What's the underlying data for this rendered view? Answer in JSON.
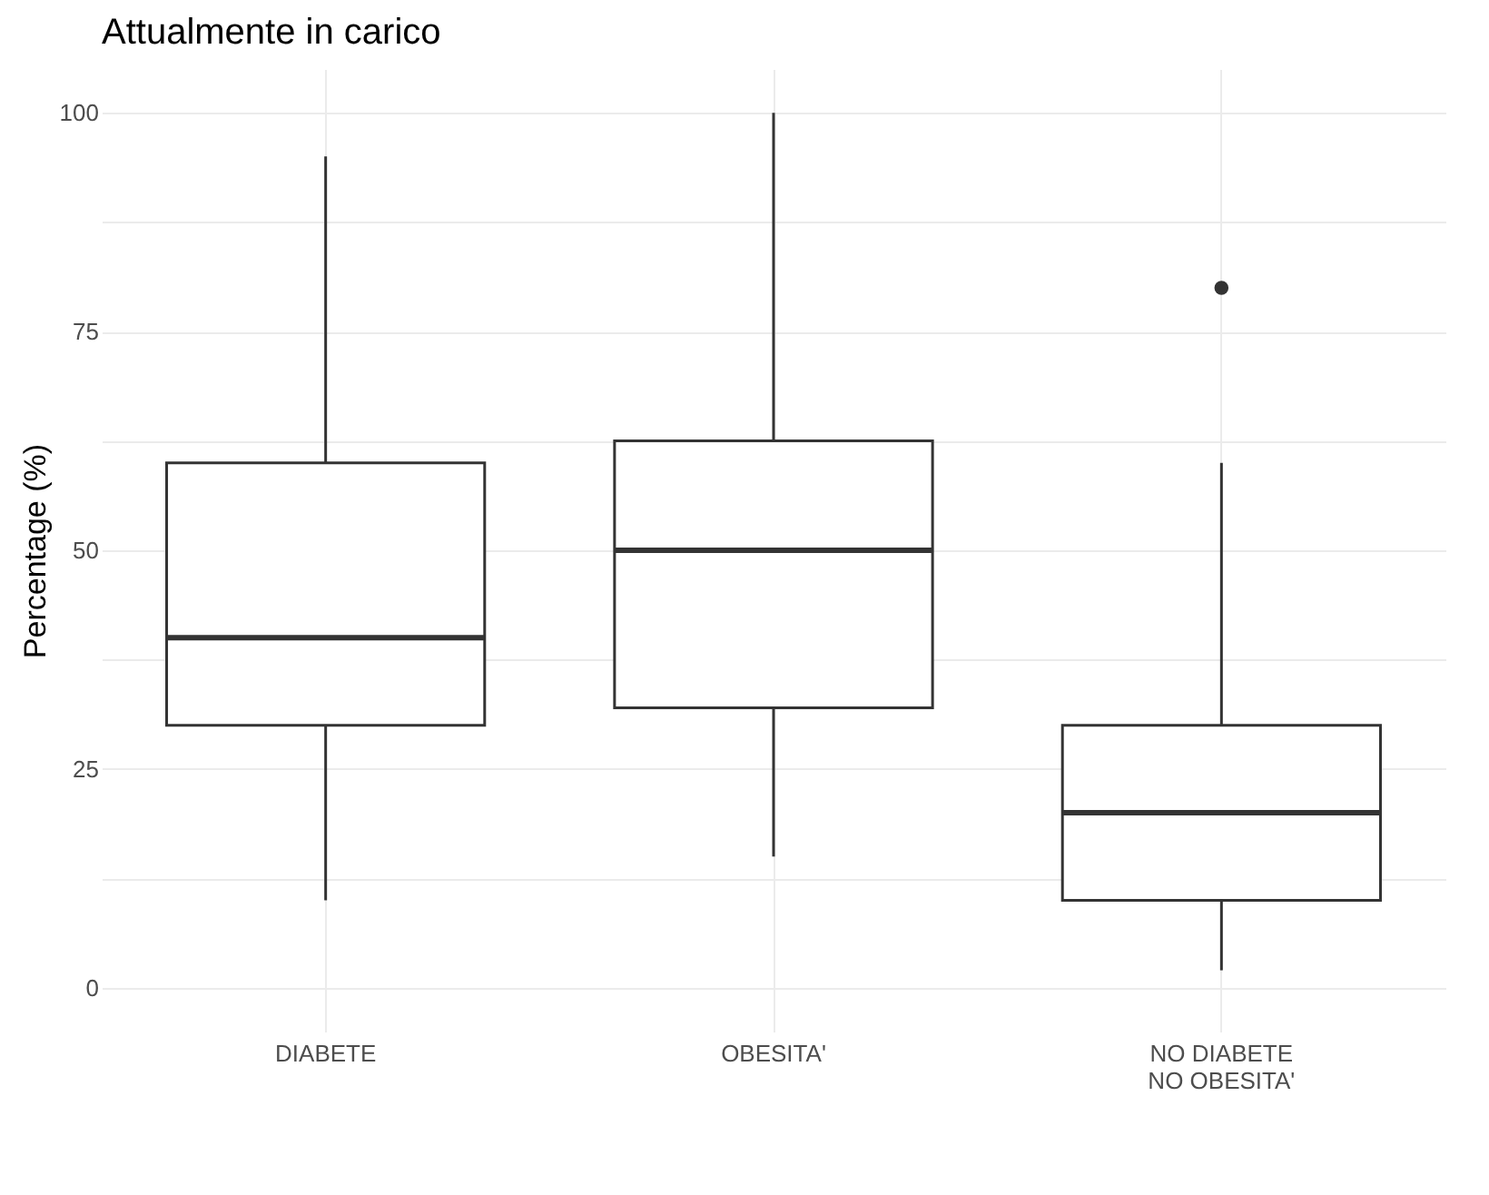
{
  "chart_data": {
    "type": "box",
    "title": "Attualmente in carico",
    "ylabel": "Percentage (%)",
    "categories": [
      "DIABETE",
      "OBESITA'",
      "NO DIABETE\nNO OBESITA'"
    ],
    "boxes": [
      {
        "low": 10,
        "q1": 30,
        "median": 40,
        "q3": 60,
        "high": 95
      },
      {
        "low": 15,
        "q1": 32,
        "median": 50,
        "q3": 62.5,
        "high": 100
      },
      {
        "low": 2,
        "q1": 10,
        "median": 20,
        "q3": 30,
        "high": 60,
        "outliers": [
          80
        ]
      }
    ],
    "color": "#333333",
    "ylim": [
      -5,
      105
    ],
    "yticks": [
      0,
      {
        "value": 12.5,
        "label": null
      },
      25,
      {
        "value": 37.5,
        "label": null
      },
      50,
      {
        "value": 62.5,
        "label": null
      },
      75,
      {
        "value": 87.5,
        "label": null
      },
      100
    ],
    "grid": true
  }
}
